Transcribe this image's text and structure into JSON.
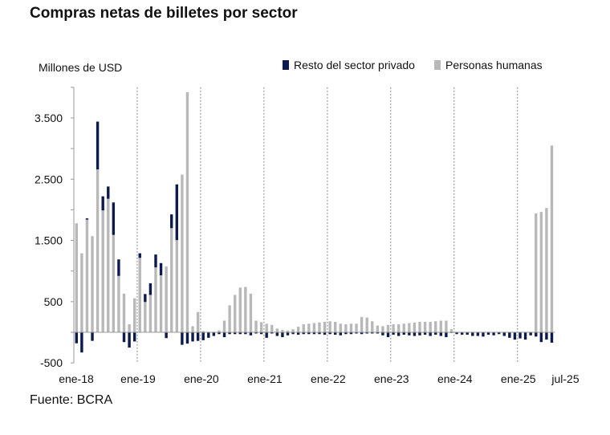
{
  "chart_data": {
    "type": "bar",
    "stacked": true,
    "title": "Compras netas de billetes por sector",
    "ylabel": "Millones de USD",
    "source": "Fuente: BCRA",
    "ylim": [
      -500,
      4000
    ],
    "yticks": [
      3500,
      2500,
      1500,
      500,
      -500
    ],
    "ytick_labels": [
      "3.500",
      "2.500",
      "1.500",
      "500",
      "-500"
    ],
    "x_start": "ene-18",
    "x_end": "jul-25",
    "xtick_labels": [
      "ene-18",
      "ene-19",
      "ene-20",
      "ene-21",
      "ene-22",
      "ene-23",
      "ene-24",
      "ene-25",
      "jul-25"
    ],
    "xtick_months": [
      0,
      12,
      24,
      36,
      48,
      60,
      72,
      84,
      90
    ],
    "vertical_dashed_lines_at": [
      "ene-19",
      "ene-20",
      "ene-21",
      "ene-22",
      "ene-23",
      "ene-24",
      "ene-25"
    ],
    "legend_placement": "top-right",
    "series": [
      {
        "name": "Resto del sector privado",
        "color": "#0d1b4c",
        "values": [
          -180,
          -330,
          20,
          -140,
          780,
          230,
          200,
          530,
          270,
          -160,
          -250,
          -150,
          75,
          130,
          190,
          210,
          200,
          -95,
          225,
          910,
          -205,
          -185,
          -150,
          -140,
          -130,
          -90,
          -60,
          -30,
          -80,
          -30,
          -30,
          -30,
          -30,
          -50,
          -20,
          -30,
          -90,
          -20,
          -60,
          -80,
          -50,
          -30,
          -40,
          -30,
          -30,
          -30,
          -30,
          -40,
          -30,
          -40,
          -50,
          -30,
          -30,
          -20,
          -30,
          -20,
          -20,
          -20,
          -50,
          -80,
          -40,
          -60,
          -40,
          -50,
          -60,
          -50,
          -40,
          -60,
          -40,
          -60,
          -80,
          -10,
          -30,
          -40,
          -40,
          -60,
          -60,
          -70,
          -40,
          -50,
          -30,
          -60,
          -90,
          -120,
          -100,
          -120,
          -50,
          -70,
          -160,
          -120,
          -170
        ]
      },
      {
        "name": "Personas humanas",
        "color": "#b8b8b8",
        "values": [
          1780,
          1290,
          1840,
          1570,
          2660,
          1990,
          2180,
          1590,
          920,
          630,
          130,
          555,
          1215,
          495,
          610,
          1060,
          930,
          1075,
          1700,
          1505,
          2575,
          3920,
          100,
          330,
          20,
          0,
          0,
          30,
          190,
          440,
          610,
          730,
          740,
          630,
          190,
          165,
          140,
          120,
          60,
          40,
          30,
          50,
          90,
          130,
          140,
          150,
          160,
          170,
          180,
          170,
          140,
          130,
          140,
          140,
          250,
          240,
          180,
          110,
          100,
          120,
          130,
          130,
          140,
          150,
          160,
          170,
          170,
          170,
          180,
          190,
          190,
          50,
          0,
          0,
          0,
          0,
          0,
          0,
          0,
          0,
          0,
          0,
          0,
          0,
          0,
          0,
          0,
          1940,
          1965,
          2030,
          3050
        ]
      }
    ]
  }
}
